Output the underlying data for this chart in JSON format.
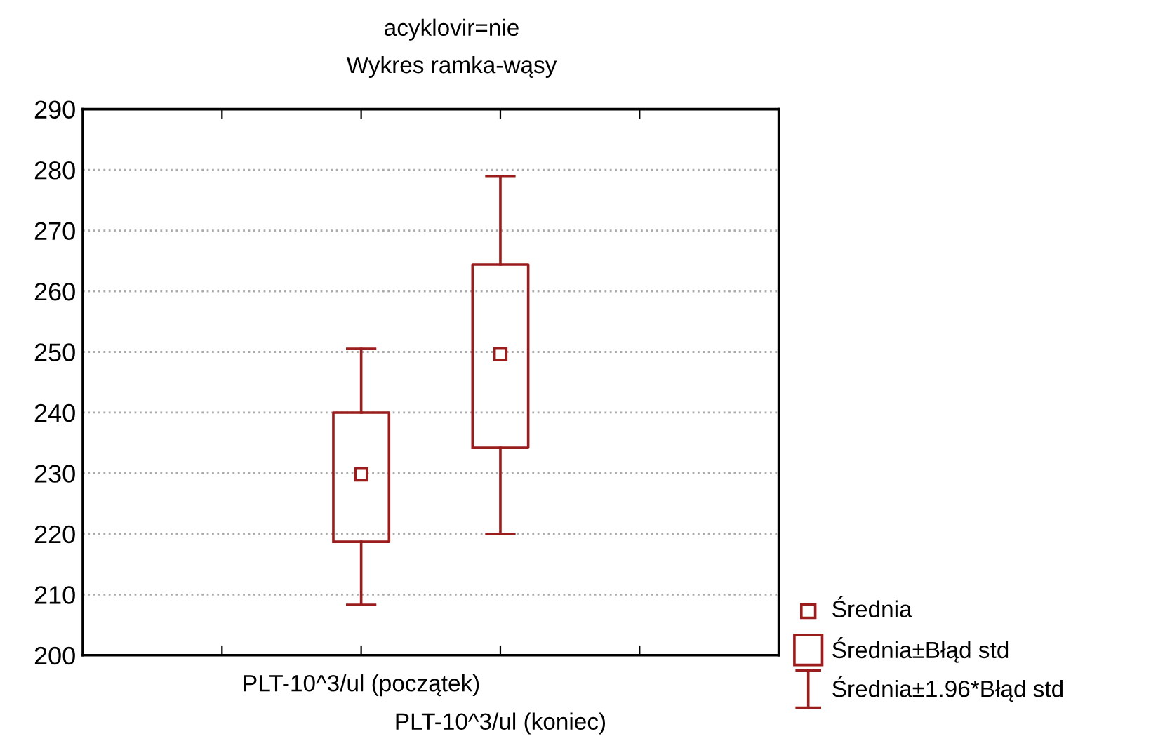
{
  "chart_data": {
    "type": "box",
    "title": "acyklovir=nie",
    "subtitle": "Wykres ramka-wąsy",
    "categories": [
      null,
      "PLT-10^3/ul (początek)",
      "PLT-10^3/ul (koniec)",
      null
    ],
    "series": [
      {
        "color": "#9b1c1c",
        "boxes": [
          null,
          {
            "low": 208.3,
            "q1": 218.7,
            "median": 229.8,
            "q3": 240.0,
            "high": 250.5
          },
          {
            "low": 220.0,
            "q1": 234.2,
            "median": 249.6,
            "q3": 264.4,
            "high": 279.0
          },
          null
        ]
      }
    ],
    "annotations": [
      "Średnia",
      "Średnia±Błąd std",
      "Średnia±1.96*Błąd std"
    ],
    "ylim": [
      200,
      290
    ],
    "yticks": [
      200,
      210,
      220,
      230,
      240,
      250,
      260,
      270,
      280,
      290
    ],
    "grid": "y"
  }
}
